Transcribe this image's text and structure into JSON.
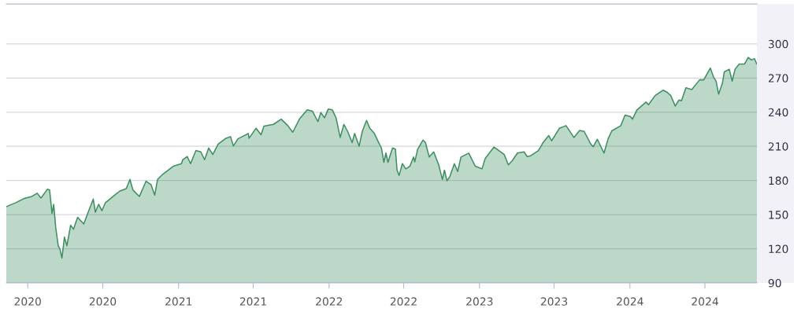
{
  "chart_data": {
    "type": "area",
    "xlim": [
      "2019-11-10",
      "2024-11-04"
    ],
    "ylim": [
      90,
      335
    ],
    "xticks": [
      {
        "value": "2020-01-01",
        "label": "2020"
      },
      {
        "value": "2020-07-01",
        "label": "2020"
      },
      {
        "value": "2021-01-01",
        "label": "2021"
      },
      {
        "value": "2021-07-01",
        "label": "2021"
      },
      {
        "value": "2022-01-01",
        "label": "2022"
      },
      {
        "value": "2022-07-01",
        "label": "2022"
      },
      {
        "value": "2023-01-01",
        "label": "2023"
      },
      {
        "value": "2023-07-01",
        "label": "2023"
      },
      {
        "value": "2024-01-01",
        "label": "2024"
      },
      {
        "value": "2024-07-01",
        "label": "2024"
      }
    ],
    "yticks": [
      90,
      120,
      150,
      180,
      210,
      240,
      270,
      300
    ],
    "grid": "y",
    "series": [
      {
        "color": "#3d8f60",
        "x": [
          "2019-11-10",
          "2019-12-03",
          "2019-12-22",
          "2020-01-11",
          "2020-01-24",
          "2020-02-02",
          "2020-02-18",
          "2020-02-23",
          "2020-02-29",
          "2020-03-04",
          "2020-03-09",
          "2020-03-15",
          "2020-03-19",
          "2020-03-24",
          "2020-03-30",
          "2020-04-05",
          "2020-04-14",
          "2020-04-21",
          "2020-05-01",
          "2020-05-16",
          "2020-05-23",
          "2020-06-08",
          "2020-06-13",
          "2020-06-21",
          "2020-06-29",
          "2020-07-07",
          "2020-07-26",
          "2020-08-11",
          "2020-08-27",
          "2020-09-05",
          "2020-09-12",
          "2020-09-18",
          "2020-09-28",
          "2020-10-14",
          "2020-10-26",
          "2020-11-04",
          "2020-11-11",
          "2020-11-24",
          "2020-12-19",
          "2021-01-08",
          "2021-01-11",
          "2021-01-22",
          "2021-01-30",
          "2021-02-12",
          "2021-02-24",
          "2021-03-05",
          "2021-03-15",
          "2021-03-25",
          "2021-04-07",
          "2021-04-26",
          "2021-05-07",
          "2021-05-14",
          "2021-05-25",
          "2021-06-19",
          "2021-06-21",
          "2021-07-08",
          "2021-07-20",
          "2021-07-27",
          "2021-08-19",
          "2021-09-07",
          "2021-09-23",
          "2021-10-05",
          "2021-10-21",
          "2021-11-09",
          "2021-11-22",
          "2021-12-05",
          "2021-12-12",
          "2021-12-21",
          "2021-12-30",
          "2022-01-09",
          "2022-01-18",
          "2022-01-28",
          "2022-02-06",
          "2022-02-16",
          "2022-02-26",
          "2022-03-04",
          "2022-03-15",
          "2022-03-23",
          "2022-04-02",
          "2022-04-10",
          "2022-04-21",
          "2022-04-30",
          "2022-05-08",
          "2022-05-14",
          "2022-05-19",
          "2022-05-24",
          "2022-06-04",
          "2022-06-11",
          "2022-06-15",
          "2022-06-20",
          "2022-06-28",
          "2022-07-06",
          "2022-07-16",
          "2022-07-25",
          "2022-07-28",
          "2022-08-04",
          "2022-08-17",
          "2022-08-23",
          "2022-09-01",
          "2022-09-12",
          "2022-09-24",
          "2022-10-03",
          "2022-10-08",
          "2022-10-14",
          "2022-10-21",
          "2022-11-01",
          "2022-11-09",
          "2022-11-17",
          "2022-12-06",
          "2022-12-14",
          "2022-12-22",
          "2023-01-07",
          "2023-01-15",
          "2023-02-05",
          "2023-02-17",
          "2023-03-02",
          "2023-03-12",
          "2023-03-21",
          "2023-04-03",
          "2023-04-19",
          "2023-04-27",
          "2023-05-05",
          "2023-05-24",
          "2023-06-04",
          "2023-06-18",
          "2023-06-25",
          "2023-07-14",
          "2023-07-30",
          "2023-08-18",
          "2023-09-01",
          "2023-09-12",
          "2023-09-28",
          "2023-10-04",
          "2023-10-14",
          "2023-10-30",
          "2023-11-09",
          "2023-11-18",
          "2023-12-10",
          "2023-12-20",
          "2024-01-02",
          "2024-01-07",
          "2024-01-18",
          "2024-02-09",
          "2024-02-15",
          "2024-03-02",
          "2024-03-21",
          "2024-03-31",
          "2024-04-09",
          "2024-04-20",
          "2024-04-29",
          "2024-05-05",
          "2024-05-16",
          "2024-05-30",
          "2024-06-18",
          "2024-06-28",
          "2024-07-14",
          "2024-07-22",
          "2024-07-28",
          "2024-08-03",
          "2024-08-12",
          "2024-08-17",
          "2024-08-29",
          "2024-09-05",
          "2024-09-12",
          "2024-09-22",
          "2024-10-05",
          "2024-10-14",
          "2024-10-22",
          "2024-10-29",
          "2024-11-04"
        ],
        "values": [
          157,
          160.5,
          164,
          166,
          168.8,
          164.6,
          172.4,
          171.7,
          151,
          159,
          138.4,
          122.5,
          120,
          111.9,
          130.3,
          122.7,
          140.7,
          137.2,
          147.6,
          141.8,
          148.7,
          163.7,
          152.2,
          159.1,
          153.4,
          160.3,
          166,
          170.6,
          172.9,
          181,
          171.8,
          169.5,
          166,
          179.4,
          176.4,
          167.1,
          181,
          185.6,
          192.5,
          194.8,
          198.2,
          201,
          194.8,
          206.3,
          205.1,
          198.2,
          208.5,
          202.8,
          212,
          217.1,
          218.5,
          210.4,
          216.6,
          221.3,
          217.1,
          225.9,
          220.2,
          227.7,
          229.3,
          233.9,
          228.2,
          222.4,
          233.9,
          242,
          240.8,
          231.7,
          239.7,
          235.1,
          242.7,
          242,
          235.1,
          217.8,
          229.3,
          222.4,
          213.2,
          221.3,
          210.2,
          223.6,
          232.8,
          225.9,
          221.3,
          214.4,
          208.6,
          196,
          204.1,
          196,
          208.6,
          207.5,
          189.1,
          184.5,
          194.8,
          190.2,
          192.5,
          200.6,
          196.4,
          207.5,
          215.5,
          213.2,
          200.6,
          205.1,
          193.7,
          180.9,
          189.1,
          179.8,
          183.3,
          194.8,
          187.9,
          200.6,
          204,
          198.2,
          192.5,
          190.2,
          199.4,
          209.3,
          206.3,
          202.8,
          193.7,
          197.2,
          204.1,
          205.1,
          201,
          201.7,
          206.3,
          213.2,
          219.4,
          214.8,
          225.9,
          228.2,
          217.8,
          224,
          223.1,
          212,
          209.7,
          216.2,
          204.1,
          216.6,
          223.6,
          228.2,
          237.4,
          236.2,
          233.9,
          242,
          248.9,
          246.6,
          254.6,
          259.3,
          257.6,
          254.6,
          245.4,
          250.7,
          250,
          261.5,
          259.9,
          268.4,
          268.4,
          278.8,
          270.7,
          267.3,
          255.9,
          265,
          275.4,
          277.7,
          267.3,
          277.7,
          282.3,
          282.3,
          288.1,
          285.8,
          287,
          282.3
        ]
      }
    ]
  }
}
